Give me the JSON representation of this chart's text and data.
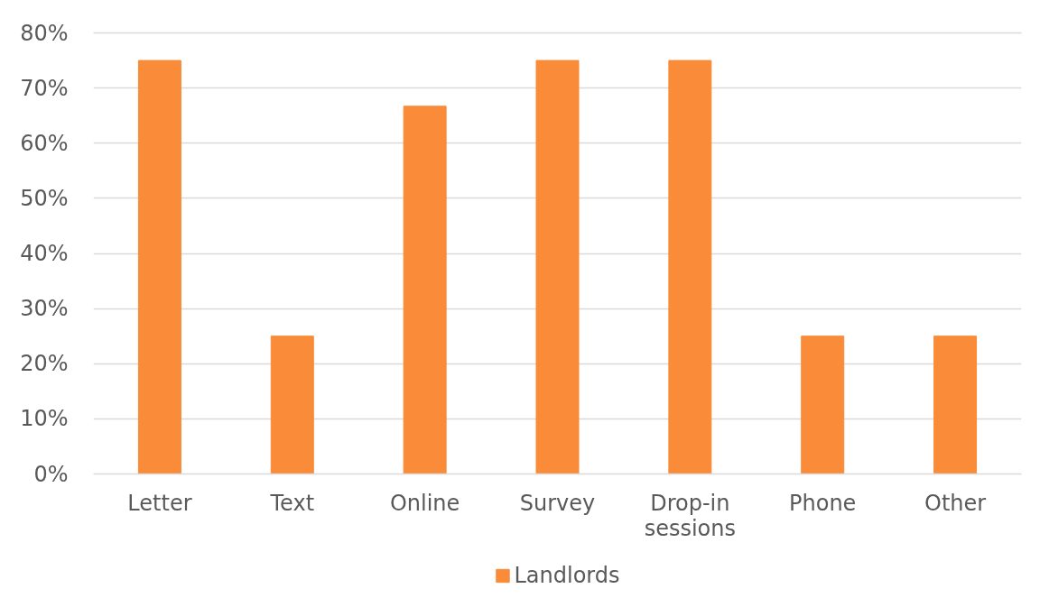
{
  "chart_data": {
    "type": "bar",
    "categories": [
      "Letter",
      "Text",
      "Online",
      "Survey",
      "Drop-in sessions",
      "Phone",
      "Other"
    ],
    "series": [
      {
        "name": "Landlords",
        "color": "#f98b39",
        "values": [
          75,
          25,
          66.7,
          75,
          75,
          25,
          25
        ]
      }
    ],
    "ylim": [
      0,
      80
    ],
    "yticks": [
      {
        "value": 0,
        "label": "0%"
      },
      {
        "value": 10,
        "label": "10%"
      },
      {
        "value": 20,
        "label": "20%"
      },
      {
        "value": 30,
        "label": "30%"
      },
      {
        "value": 40,
        "label": "40%"
      },
      {
        "value": 50,
        "label": "50%"
      },
      {
        "value": 60,
        "label": "60%"
      },
      {
        "value": 70,
        "label": "70%"
      },
      {
        "value": 80,
        "label": "80%"
      }
    ],
    "grid": "y",
    "legend": "bottom"
  }
}
